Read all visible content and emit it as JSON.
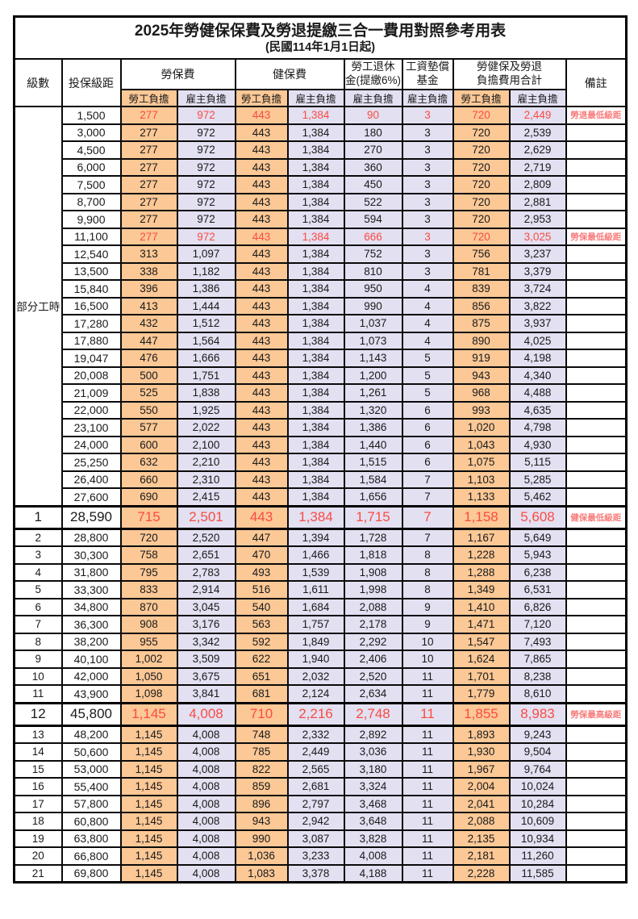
{
  "title": "2025年勞健保保費及勞退提繳三合一費用對照參考用表",
  "subtitle": "(民國114年1月1日起)",
  "header": {
    "level": "級數",
    "salary": "投保級距",
    "labor_group": "勞保費",
    "health_group": "健保費",
    "pension_line1": "勞工退休",
    "pension_line2": "金(提繳6%)",
    "fund_line1": "工資墊償",
    "fund_line2": "基金",
    "total_line1": "勞健保及勞退",
    "total_line2": "負擔費用合計",
    "remark": "備註",
    "employee_burden": "勞工負擔",
    "employer_burden": "雇主負擔"
  },
  "part_time": {
    "label": "部分工時",
    "rowspan": 23
  },
  "colors": {
    "employee_col_bg": "#FBC896",
    "employer_col_bg": "#E2E0F1",
    "highlight_text": "#FB4B42",
    "remark_text": "#F97B7B",
    "border": "#000000"
  },
  "rows": [
    {
      "level": "",
      "salary": "1,500",
      "values": [
        "277",
        "972",
        "443",
        "1,384",
        "90",
        "3",
        "720",
        "2,449"
      ],
      "remark": "勞退最低級距",
      "red": true,
      "big": false
    },
    {
      "level": "",
      "salary": "3,000",
      "values": [
        "277",
        "972",
        "443",
        "1,384",
        "180",
        "3",
        "720",
        "2,539"
      ],
      "remark": "",
      "red": false,
      "big": false
    },
    {
      "level": "",
      "salary": "4,500",
      "values": [
        "277",
        "972",
        "443",
        "1,384",
        "270",
        "3",
        "720",
        "2,629"
      ],
      "remark": "",
      "red": false,
      "big": false
    },
    {
      "level": "",
      "salary": "6,000",
      "values": [
        "277",
        "972",
        "443",
        "1,384",
        "360",
        "3",
        "720",
        "2,719"
      ],
      "remark": "",
      "red": false,
      "big": false
    },
    {
      "level": "",
      "salary": "7,500",
      "values": [
        "277",
        "972",
        "443",
        "1,384",
        "450",
        "3",
        "720",
        "2,809"
      ],
      "remark": "",
      "red": false,
      "big": false
    },
    {
      "level": "",
      "salary": "8,700",
      "values": [
        "277",
        "972",
        "443",
        "1,384",
        "522",
        "3",
        "720",
        "2,881"
      ],
      "remark": "",
      "red": false,
      "big": false
    },
    {
      "level": "",
      "salary": "9,900",
      "values": [
        "277",
        "972",
        "443",
        "1,384",
        "594",
        "3",
        "720",
        "2,953"
      ],
      "remark": "",
      "red": false,
      "big": false
    },
    {
      "level": "",
      "salary": "11,100",
      "values": [
        "277",
        "972",
        "443",
        "1,384",
        "666",
        "3",
        "720",
        "3,025"
      ],
      "remark": "勞保最低級距",
      "red": true,
      "big": false
    },
    {
      "level": "",
      "salary": "12,540",
      "values": [
        "313",
        "1,097",
        "443",
        "1,384",
        "752",
        "3",
        "756",
        "3,237"
      ],
      "remark": "",
      "red": false,
      "big": false
    },
    {
      "level": "",
      "salary": "13,500",
      "values": [
        "338",
        "1,182",
        "443",
        "1,384",
        "810",
        "3",
        "781",
        "3,379"
      ],
      "remark": "",
      "red": false,
      "big": false
    },
    {
      "level": "",
      "salary": "15,840",
      "values": [
        "396",
        "1,386",
        "443",
        "1,384",
        "950",
        "4",
        "839",
        "3,724"
      ],
      "remark": "",
      "red": false,
      "big": false
    },
    {
      "level": "",
      "salary": "16,500",
      "values": [
        "413",
        "1,444",
        "443",
        "1,384",
        "990",
        "4",
        "856",
        "3,822"
      ],
      "remark": "",
      "red": false,
      "big": false
    },
    {
      "level": "",
      "salary": "17,280",
      "values": [
        "432",
        "1,512",
        "443",
        "1,384",
        "1,037",
        "4",
        "875",
        "3,937"
      ],
      "remark": "",
      "red": false,
      "big": false
    },
    {
      "level": "",
      "salary": "17,880",
      "values": [
        "447",
        "1,564",
        "443",
        "1,384",
        "1,073",
        "4",
        "890",
        "4,025"
      ],
      "remark": "",
      "red": false,
      "big": false
    },
    {
      "level": "",
      "salary": "19,047",
      "values": [
        "476",
        "1,666",
        "443",
        "1,384",
        "1,143",
        "5",
        "919",
        "4,198"
      ],
      "remark": "",
      "red": false,
      "big": false
    },
    {
      "level": "",
      "salary": "20,008",
      "values": [
        "500",
        "1,751",
        "443",
        "1,384",
        "1,200",
        "5",
        "943",
        "4,340"
      ],
      "remark": "",
      "red": false,
      "big": false
    },
    {
      "level": "",
      "salary": "21,009",
      "values": [
        "525",
        "1,838",
        "443",
        "1,384",
        "1,261",
        "5",
        "968",
        "4,488"
      ],
      "remark": "",
      "red": false,
      "big": false
    },
    {
      "level": "",
      "salary": "22,000",
      "values": [
        "550",
        "1,925",
        "443",
        "1,384",
        "1,320",
        "6",
        "993",
        "4,635"
      ],
      "remark": "",
      "red": false,
      "big": false
    },
    {
      "level": "",
      "salary": "23,100",
      "values": [
        "577",
        "2,022",
        "443",
        "1,384",
        "1,386",
        "6",
        "1,020",
        "4,798"
      ],
      "remark": "",
      "red": false,
      "big": false
    },
    {
      "level": "",
      "salary": "24,000",
      "values": [
        "600",
        "2,100",
        "443",
        "1,384",
        "1,440",
        "6",
        "1,043",
        "4,930"
      ],
      "remark": "",
      "red": false,
      "big": false
    },
    {
      "level": "",
      "salary": "25,250",
      "values": [
        "632",
        "2,210",
        "443",
        "1,384",
        "1,515",
        "6",
        "1,075",
        "5,115"
      ],
      "remark": "",
      "red": false,
      "big": false
    },
    {
      "level": "",
      "salary": "26,400",
      "values": [
        "660",
        "2,310",
        "443",
        "1,384",
        "1,584",
        "7",
        "1,103",
        "5,285"
      ],
      "remark": "",
      "red": false,
      "big": false
    },
    {
      "level": "",
      "salary": "27,600",
      "values": [
        "690",
        "2,415",
        "443",
        "1,384",
        "1,656",
        "7",
        "1,133",
        "5,462"
      ],
      "remark": "",
      "red": false,
      "big": false
    },
    {
      "level": "1",
      "salary": "28,590",
      "values": [
        "715",
        "2,501",
        "443",
        "1,384",
        "1,715",
        "7",
        "1,158",
        "5,608"
      ],
      "remark": "健保最低級距",
      "red": true,
      "big": true
    },
    {
      "level": "2",
      "salary": "28,800",
      "values": [
        "720",
        "2,520",
        "447",
        "1,394",
        "1,728",
        "7",
        "1,167",
        "5,649"
      ],
      "remark": "",
      "red": false,
      "big": false
    },
    {
      "level": "3",
      "salary": "30,300",
      "values": [
        "758",
        "2,651",
        "470",
        "1,466",
        "1,818",
        "8",
        "1,228",
        "5,943"
      ],
      "remark": "",
      "red": false,
      "big": false
    },
    {
      "level": "4",
      "salary": "31,800",
      "values": [
        "795",
        "2,783",
        "493",
        "1,539",
        "1,908",
        "8",
        "1,288",
        "6,238"
      ],
      "remark": "",
      "red": false,
      "big": false
    },
    {
      "level": "5",
      "salary": "33,300",
      "values": [
        "833",
        "2,914",
        "516",
        "1,611",
        "1,998",
        "8",
        "1,349",
        "6,531"
      ],
      "remark": "",
      "red": false,
      "big": false
    },
    {
      "level": "6",
      "salary": "34,800",
      "values": [
        "870",
        "3,045",
        "540",
        "1,684",
        "2,088",
        "9",
        "1,410",
        "6,826"
      ],
      "remark": "",
      "red": false,
      "big": false
    },
    {
      "level": "7",
      "salary": "36,300",
      "values": [
        "908",
        "3,176",
        "563",
        "1,757",
        "2,178",
        "9",
        "1,471",
        "7,120"
      ],
      "remark": "",
      "red": false,
      "big": false
    },
    {
      "level": "8",
      "salary": "38,200",
      "values": [
        "955",
        "3,342",
        "592",
        "1,849",
        "2,292",
        "10",
        "1,547",
        "7,493"
      ],
      "remark": "",
      "red": false,
      "big": false
    },
    {
      "level": "9",
      "salary": "40,100",
      "values": [
        "1,002",
        "3,509",
        "622",
        "1,940",
        "2,406",
        "10",
        "1,624",
        "7,865"
      ],
      "remark": "",
      "red": false,
      "big": false
    },
    {
      "level": "10",
      "salary": "42,000",
      "values": [
        "1,050",
        "3,675",
        "651",
        "2,032",
        "2,520",
        "11",
        "1,701",
        "8,238"
      ],
      "remark": "",
      "red": false,
      "big": false
    },
    {
      "level": "11",
      "salary": "43,900",
      "values": [
        "1,098",
        "3,841",
        "681",
        "2,124",
        "2,634",
        "11",
        "1,779",
        "8,610"
      ],
      "remark": "",
      "red": false,
      "big": false
    },
    {
      "level": "12",
      "salary": "45,800",
      "values": [
        "1,145",
        "4,008",
        "710",
        "2,216",
        "2,748",
        "11",
        "1,855",
        "8,983"
      ],
      "remark": "勞保最高級距",
      "red": true,
      "big": true
    },
    {
      "level": "13",
      "salary": "48,200",
      "values": [
        "1,145",
        "4,008",
        "748",
        "2,332",
        "2,892",
        "11",
        "1,893",
        "9,243"
      ],
      "remark": "",
      "red": false,
      "big": false
    },
    {
      "level": "14",
      "salary": "50,600",
      "values": [
        "1,145",
        "4,008",
        "785",
        "2,449",
        "3,036",
        "11",
        "1,930",
        "9,504"
      ],
      "remark": "",
      "red": false,
      "big": false
    },
    {
      "level": "15",
      "salary": "53,000",
      "values": [
        "1,145",
        "4,008",
        "822",
        "2,565",
        "3,180",
        "11",
        "1,967",
        "9,764"
      ],
      "remark": "",
      "red": false,
      "big": false
    },
    {
      "level": "16",
      "salary": "55,400",
      "values": [
        "1,145",
        "4,008",
        "859",
        "2,681",
        "3,324",
        "11",
        "2,004",
        "10,024"
      ],
      "remark": "",
      "red": false,
      "big": false
    },
    {
      "level": "17",
      "salary": "57,800",
      "values": [
        "1,145",
        "4,008",
        "896",
        "2,797",
        "3,468",
        "11",
        "2,041",
        "10,284"
      ],
      "remark": "",
      "red": false,
      "big": false
    },
    {
      "level": "18",
      "salary": "60,800",
      "values": [
        "1,145",
        "4,008",
        "943",
        "2,942",
        "3,648",
        "11",
        "2,088",
        "10,609"
      ],
      "remark": "",
      "red": false,
      "big": false
    },
    {
      "level": "19",
      "salary": "63,800",
      "values": [
        "1,145",
        "4,008",
        "990",
        "3,087",
        "3,828",
        "11",
        "2,135",
        "10,934"
      ],
      "remark": "",
      "red": false,
      "big": false
    },
    {
      "level": "20",
      "salary": "66,800",
      "values": [
        "1,145",
        "4,008",
        "1,036",
        "3,233",
        "4,008",
        "11",
        "2,181",
        "11,260"
      ],
      "remark": "",
      "red": false,
      "big": false
    },
    {
      "level": "21",
      "salary": "69,800",
      "values": [
        "1,145",
        "4,008",
        "1,083",
        "3,378",
        "4,188",
        "11",
        "2,228",
        "11,585"
      ],
      "remark": "",
      "red": false,
      "big": false
    }
  ]
}
